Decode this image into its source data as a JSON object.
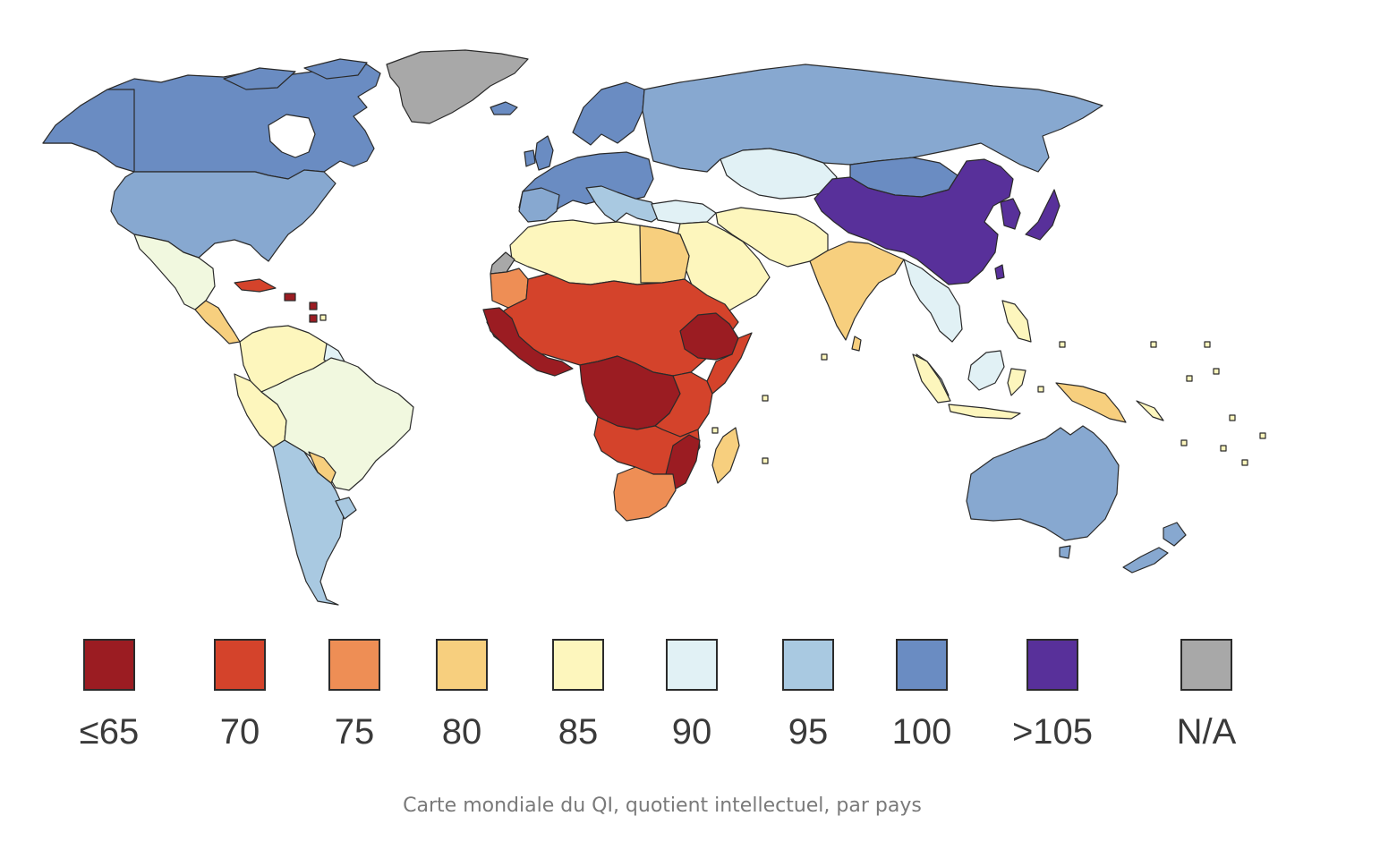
{
  "colors": {
    "le65": "#9b1c22",
    "c70": "#d4432b",
    "c75": "#ee8e55",
    "c80": "#f7cf7e",
    "c85": "#fdf6bd",
    "c90": "#e1f1f5",
    "c95": "#a9c9e1",
    "c100": "#6a8cc2",
    "gt105": "#58309a",
    "na": "#a8a8a8",
    "c88": "#f1f8df",
    "c98": "#87a8d0"
  },
  "legend": {
    "items": [
      {
        "label": "≤65",
        "color": "#9b1c22"
      },
      {
        "label": "70",
        "color": "#d4432b"
      },
      {
        "label": "75",
        "color": "#ee8e55"
      },
      {
        "label": "80",
        "color": "#f7cf7e"
      },
      {
        "label": "85",
        "color": "#fdf6bd"
      },
      {
        "label": "90",
        "color": "#e1f1f5"
      },
      {
        "label": "95",
        "color": "#a9c9e1"
      },
      {
        "label": "100",
        "color": "#6a8cc2"
      },
      {
        "label": ">105",
        "color": "#58309a"
      },
      {
        "label": "N/A",
        "color": "#a8a8a8"
      }
    ]
  },
  "caption": "Carte mondiale du QI, quotient intellectuel, par pays"
}
